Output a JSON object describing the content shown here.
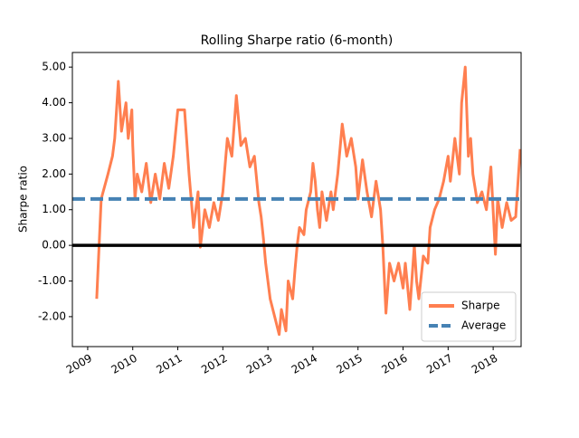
{
  "chart_data": {
    "type": "line",
    "title": "Rolling Sharpe ratio (6-month)",
    "y_label": "Sharpe ratio",
    "x": [
      2009.2,
      2009.3,
      2009.45,
      2009.55,
      2009.6,
      2009.68,
      2009.75,
      2009.85,
      2009.9,
      2009.98,
      2010.0,
      2010.05,
      2010.1,
      2010.2,
      2010.3,
      2010.4,
      2010.5,
      2010.6,
      2010.7,
      2010.8,
      2010.9,
      2011.0,
      2011.15,
      2011.25,
      2011.35,
      2011.45,
      2011.5,
      2011.6,
      2011.7,
      2011.8,
      2011.9,
      2012.0,
      2012.1,
      2012.2,
      2012.3,
      2012.4,
      2012.5,
      2012.6,
      2012.7,
      2012.8,
      2012.85,
      2012.9,
      2012.95,
      2013.05,
      2013.15,
      2013.25,
      2013.3,
      2013.4,
      2013.45,
      2013.55,
      2013.6,
      2013.65,
      2013.7,
      2013.8,
      2013.85,
      2013.95,
      2014.0,
      2014.05,
      2014.1,
      2014.15,
      2014.2,
      2014.3,
      2014.4,
      2014.45,
      2014.55,
      2014.65,
      2014.75,
      2014.85,
      2014.95,
      2015.0,
      2015.1,
      2015.2,
      2015.3,
      2015.4,
      2015.5,
      2015.55,
      2015.62,
      2015.7,
      2015.8,
      2015.9,
      2016.0,
      2016.05,
      2016.15,
      2016.25,
      2016.3,
      2016.35,
      2016.45,
      2016.55,
      2016.6,
      2016.7,
      2016.8,
      2016.9,
      2017.0,
      2017.05,
      2017.15,
      2017.25,
      2017.3,
      2017.38,
      2017.45,
      2017.5,
      2017.55,
      2017.65,
      2017.75,
      2017.85,
      2017.95,
      2018.05,
      2018.1,
      2018.2,
      2018.3,
      2018.4,
      2018.5,
      2018.6
    ],
    "series": [
      {
        "name": "Sharpe",
        "color": "#ff7f50",
        "values": [
          -1.5,
          1.3,
          2.0,
          2.5,
          3.0,
          4.6,
          3.2,
          4.0,
          3.0,
          3.8,
          2.8,
          1.3,
          2.0,
          1.5,
          2.3,
          1.2,
          2.0,
          1.3,
          2.3,
          1.6,
          2.5,
          3.8,
          3.8,
          2.0,
          0.5,
          1.5,
          -0.05,
          1.0,
          0.5,
          1.2,
          0.7,
          1.5,
          3.0,
          2.5,
          4.2,
          2.8,
          3.0,
          2.2,
          2.5,
          1.2,
          0.8,
          0.2,
          -0.5,
          -1.5,
          -2.0,
          -2.5,
          -1.8,
          -2.4,
          -1.0,
          -1.5,
          -0.7,
          0.0,
          0.5,
          0.3,
          1.0,
          1.5,
          2.3,
          1.8,
          1.0,
          0.5,
          1.5,
          0.7,
          1.5,
          1.0,
          2.0,
          3.4,
          2.5,
          3.0,
          2.2,
          1.3,
          2.4,
          1.5,
          0.8,
          1.8,
          1.0,
          0.0,
          -1.9,
          -0.5,
          -1.0,
          -0.5,
          -1.2,
          -0.5,
          -1.8,
          0.0,
          -1.0,
          -1.5,
          -0.3,
          -0.5,
          0.5,
          1.0,
          1.3,
          1.8,
          2.5,
          1.8,
          3.0,
          2.0,
          4.0,
          5.0,
          2.5,
          3.0,
          2.0,
          1.2,
          1.5,
          1.0,
          2.2,
          -0.25,
          1.3,
          0.5,
          1.2,
          0.7,
          0.8,
          2.7
        ]
      },
      {
        "name": "Average",
        "color": "#4682b4",
        "dashed": true,
        "hline": 1.3
      }
    ],
    "baseline": 0,
    "baseline_color": "#000000",
    "xlim": [
      2008.66,
      2018.62
    ],
    "xticks": [
      2009,
      2010,
      2011,
      2012,
      2013,
      2014,
      2015,
      2016,
      2017,
      2018
    ],
    "ylim": [
      -2.84,
      5.41
    ],
    "yticks": [
      {
        "value": -2,
        "label": "-2.00"
      },
      {
        "value": -1,
        "label": "-1.00"
      },
      {
        "value": 0,
        "label": "0.00"
      },
      {
        "value": 1,
        "label": "1.00"
      },
      {
        "value": 2,
        "label": "2.00"
      },
      {
        "value": 3,
        "label": "3.00"
      },
      {
        "value": 4,
        "label": "4.00"
      },
      {
        "value": 5,
        "label": "5.00"
      }
    ],
    "legend": "lower right"
  }
}
